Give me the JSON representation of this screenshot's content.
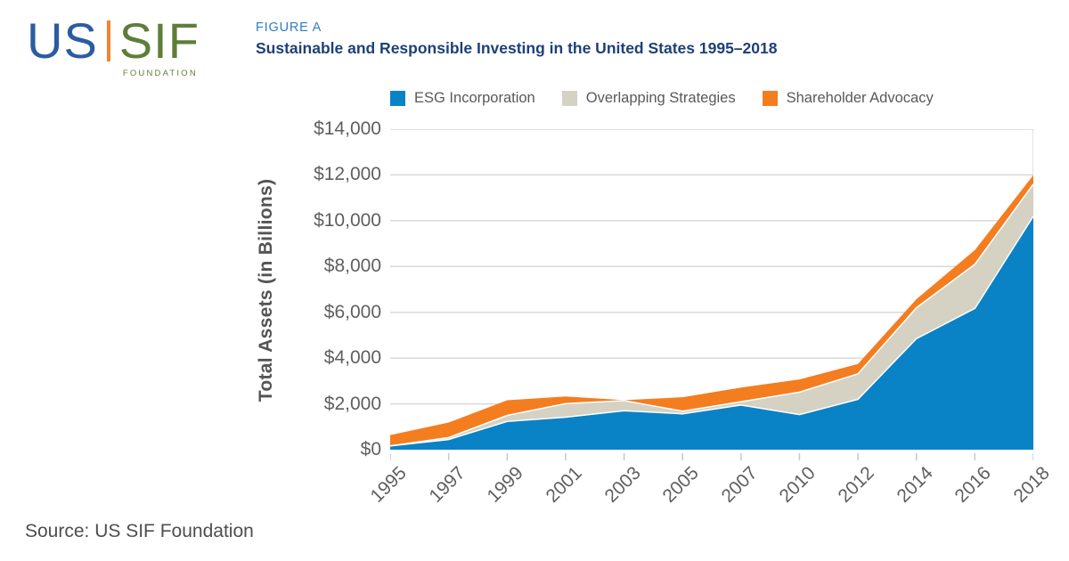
{
  "logo": {
    "us": "US",
    "sif": "SIF",
    "foundation": "FOUNDATION"
  },
  "header": {
    "figure_label": "FIGURE A",
    "title": "Sustainable and Responsible Investing in the United States 1995–2018"
  },
  "source": "Source: US SIF Foundation",
  "chart_data": {
    "type": "area",
    "stacked": true,
    "title": "Sustainable and Responsible Investing in the United States 1995–2018",
    "xlabel": "",
    "ylabel": "Total Assets (in Billions)",
    "ylim": [
      0,
      14000
    ],
    "grid": "horizontal",
    "legend_position": "top",
    "x_categories": [
      "1995",
      "1997",
      "1999",
      "2001",
      "2003",
      "2005",
      "2007",
      "2010",
      "2012",
      "2014",
      "2016",
      "2018"
    ],
    "series": [
      {
        "name": "ESG Incorporation",
        "color": "#0A82C6",
        "values": [
          162,
          445,
          1232,
          1418,
          1702,
          1568,
          1947,
          1531,
          2203,
          4850,
          6170,
          10200
        ]
      },
      {
        "name": "Overlapping Strategies",
        "color": "#D5D1C3",
        "values": [
          0,
          84,
          265,
          592,
          441,
          117,
          151,
          981,
          1111,
          1350,
          1930,
          1400
        ]
      },
      {
        "name": "Shareholder Advocacy",
        "color": "#F47D20",
        "values": [
          477,
          656,
          662,
          313,
          21,
          605,
          613,
          557,
          430,
          372,
          623,
          395
        ]
      }
    ],
    "stacked_totals": [
      639,
      1185,
      2159,
      2323,
      2164,
      2290,
      2711,
      3069,
      3744,
      6572,
      8723,
      11995
    ],
    "y_ticks": [
      {
        "v": 0,
        "label": "$0"
      },
      {
        "v": 2000,
        "label": "$2,000"
      },
      {
        "v": 4000,
        "label": "$4,000"
      },
      {
        "v": 6000,
        "label": "$6,000"
      },
      {
        "v": 8000,
        "label": "$8,000"
      },
      {
        "v": 10000,
        "label": "$10,000"
      },
      {
        "v": 12000,
        "label": "$12,000"
      },
      {
        "v": 14000,
        "label": "$14,000"
      }
    ]
  }
}
